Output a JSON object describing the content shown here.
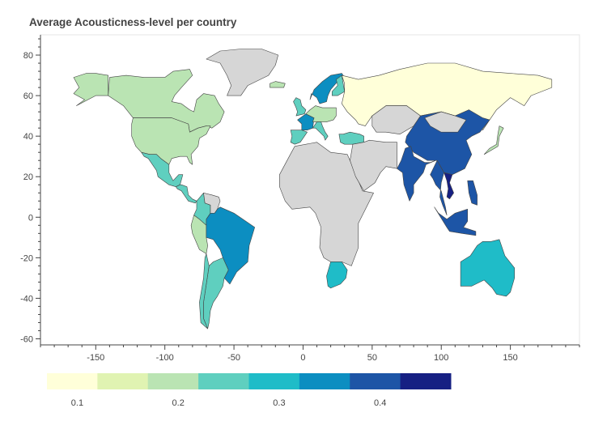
{
  "title": "Average Acousticness-level per country",
  "axes": {
    "x_ticks": [
      -150,
      -100,
      -50,
      0,
      50,
      100,
      150
    ],
    "y_ticks": [
      80,
      60,
      40,
      20,
      0,
      -20,
      -40,
      -60
    ],
    "x_range": [
      -190,
      200
    ],
    "y_range": [
      -63,
      90
    ]
  },
  "colorbar": {
    "colors": [
      "#ffffd9",
      "#e0f3b2",
      "#bae4b3",
      "#5fcfbf",
      "#1fbcc8",
      "#0c8ec1",
      "#1d55a6",
      "#162083"
    ],
    "range": [
      0.07,
      0.47
    ],
    "ticks": [
      0.1,
      0.2,
      0.3,
      0.4
    ]
  },
  "no_data_color": "#d6d6d6",
  "chart_data": {
    "type": "choropleth",
    "title": "Average Acousticness-level per country",
    "xlim": [
      -190,
      200
    ],
    "ylim": [
      -63,
      90
    ],
    "regions": [
      {
        "name": "Canada",
        "value": 0.19
      },
      {
        "name": "Alaska",
        "value": 0.19
      },
      {
        "name": "United States",
        "value": 0.19
      },
      {
        "name": "Greenland",
        "value": null
      },
      {
        "name": "Mexico",
        "value": 0.23
      },
      {
        "name": "Central America",
        "value": 0.23
      },
      {
        "name": "Colombia",
        "value": 0.23
      },
      {
        "name": "Venezuela",
        "value": null
      },
      {
        "name": "Peru",
        "value": 0.17
      },
      {
        "name": "Brazil",
        "value": 0.32
      },
      {
        "name": "Argentina",
        "value": 0.23
      },
      {
        "name": "Chile",
        "value": 0.23
      },
      {
        "name": "Iceland",
        "value": 0.19
      },
      {
        "name": "Scandinavia",
        "value": 0.32
      },
      {
        "name": "Finland",
        "value": 0.23
      },
      {
        "name": "United Kingdom",
        "value": 0.23
      },
      {
        "name": "France",
        "value": 0.35
      },
      {
        "name": "Spain",
        "value": 0.23
      },
      {
        "name": "Central Europe",
        "value": 0.19
      },
      {
        "name": "Italy",
        "value": 0.23
      },
      {
        "name": "Turkey",
        "value": 0.23
      },
      {
        "name": "Russia",
        "value": 0.1
      },
      {
        "name": "Kazakhstan",
        "value": null
      },
      {
        "name": "China",
        "value": 0.38
      },
      {
        "name": "India",
        "value": 0.38
      },
      {
        "name": "Mongolia",
        "value": null
      },
      {
        "name": "Japan",
        "value": 0.17
      },
      {
        "name": "Southeast Asia",
        "value": 0.38
      },
      {
        "name": "Vietnam",
        "value": 0.45
      },
      {
        "name": "Philippines",
        "value": 0.38
      },
      {
        "name": "Indonesia",
        "value": 0.38
      },
      {
        "name": "Australia",
        "value": 0.29
      },
      {
        "name": "Africa",
        "value": null
      },
      {
        "name": "South Africa",
        "value": 0.29
      },
      {
        "name": "Middle East",
        "value": null
      }
    ]
  }
}
